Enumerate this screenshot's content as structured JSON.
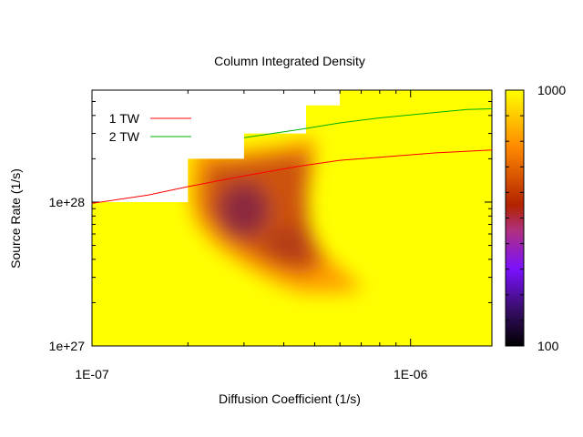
{
  "chart_data": {
    "type": "heatmap",
    "title": "Column Integrated Density",
    "xlabel": "Diffusion Coefficient (1/s)",
    "ylabel": "Source Rate (1/s)",
    "x_scale": "log",
    "y_scale": "log",
    "xlim": [
      1e-07,
      1.8e-06
    ],
    "ylim": [
      1e+27,
      6e+28
    ],
    "x_tick_labels": [
      {
        "value": 1e-07,
        "label": "1E-07"
      },
      {
        "value": 1e-06,
        "label": "1E-06"
      }
    ],
    "y_tick_labels": [
      {
        "value": 1e+27,
        "label": "1e+27"
      },
      {
        "value": 1e+28,
        "label": "1e+28"
      }
    ],
    "colorbar": {
      "min": 100,
      "max": 1000,
      "min_label": "100",
      "max_label": "1000",
      "colors": [
        "#000000",
        "#3b0e6e",
        "#7a10ff",
        "#b03080",
        "#b22200",
        "#ff8a00",
        "#ffff00"
      ]
    },
    "valid_region_upper_boundary": {
      "x": [
        1e-07,
        2e-07,
        2e-07,
        3e-07,
        3e-07,
        4.7e-07,
        4.7e-07,
        6e-07,
        6e-07,
        1.8e-06
      ],
      "y": [
        1e+28,
        1e+28,
        2e+28,
        2e+28,
        3e+28,
        3e+28,
        4.7e+28,
        4.7e+28,
        6e+28,
        6e+28
      ]
    },
    "heat_peak": {
      "x": 3e-07,
      "y": 9e+27,
      "level": 400
    },
    "legend_placement": "top-left",
    "series": [
      {
        "name": "1 TW",
        "color": "#ff0000",
        "x": [
          1e-07,
          1.5e-07,
          2e-07,
          3e-07,
          4.5e-07,
          6e-07,
          8e-07,
          1.2e-06,
          1.8e-06
        ],
        "y": [
          9.8e+27,
          1.12e+28,
          1.28e+28,
          1.52e+28,
          1.78e+28,
          1.95e+28,
          2.05e+28,
          2.2e+28,
          2.3e+28
        ]
      },
      {
        "name": "2 TW",
        "color": "#00b000",
        "x": [
          3e-07,
          4.5e-07,
          6e-07,
          8e-07,
          1.2e-06,
          1.5e-06,
          1.8e-06
        ],
        "y": [
          2.8e+28,
          3.2e+28,
          3.55e+28,
          3.85e+28,
          4.2e+28,
          4.4e+28,
          4.45e+28
        ]
      }
    ]
  }
}
